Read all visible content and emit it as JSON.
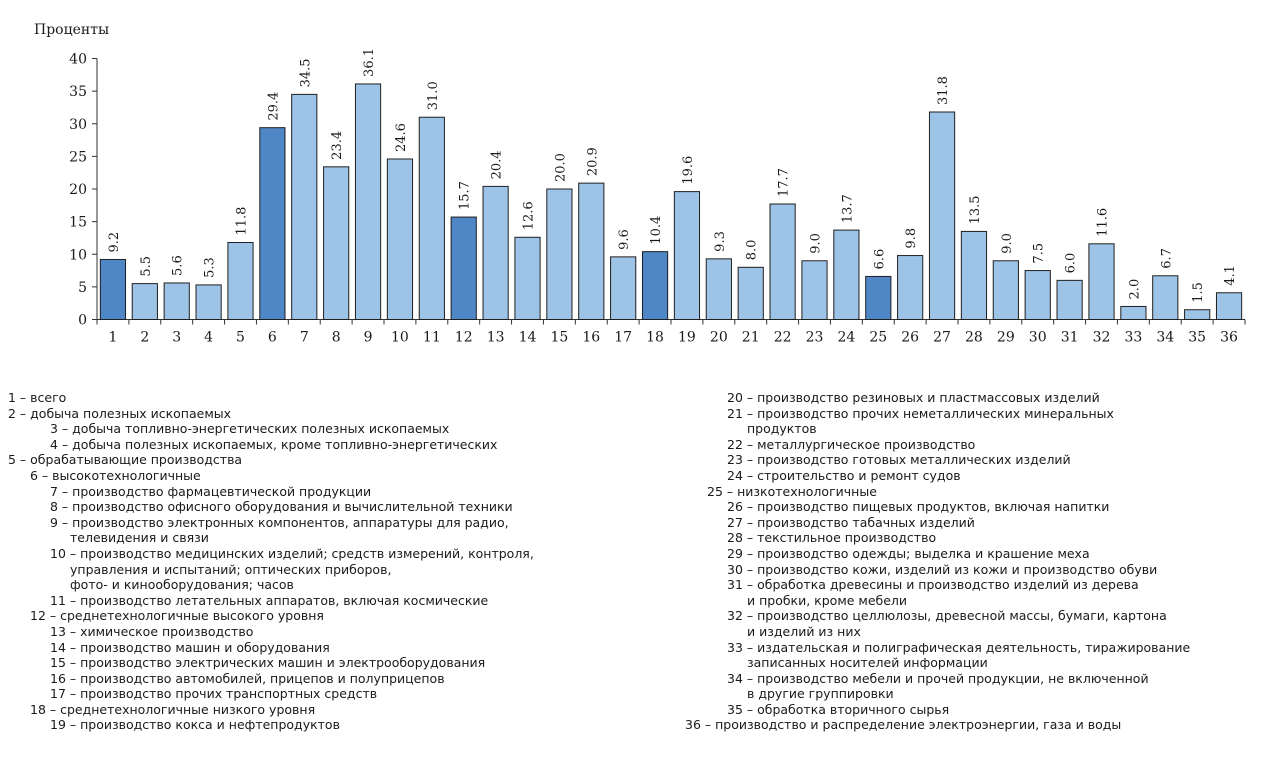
{
  "chart_data": {
    "type": "bar",
    "ylabel": "Проценты",
    "ylim": [
      0,
      40
    ],
    "yticks": [
      0,
      5,
      10,
      15,
      20,
      25,
      30,
      35,
      40
    ],
    "categories": [
      "1",
      "2",
      "3",
      "4",
      "5",
      "6",
      "7",
      "8",
      "9",
      "10",
      "11",
      "12",
      "13",
      "14",
      "15",
      "16",
      "17",
      "18",
      "19",
      "20",
      "21",
      "22",
      "23",
      "24",
      "25",
      "26",
      "27",
      "28",
      "29",
      "30",
      "31",
      "32",
      "33",
      "34",
      "35",
      "36"
    ],
    "values": [
      9.2,
      5.5,
      5.6,
      5.3,
      11.8,
      29.4,
      34.5,
      23.4,
      36.1,
      24.6,
      31.0,
      15.7,
      20.4,
      12.6,
      20.0,
      20.9,
      9.6,
      10.4,
      19.6,
      9.3,
      8.0,
      17.7,
      9.0,
      13.7,
      6.6,
      9.8,
      31.8,
      13.5,
      9.0,
      7.5,
      6.0,
      11.6,
      2.0,
      6.7,
      1.5,
      4.1
    ],
    "value_labels": [
      "9.2",
      "5.5",
      "5.6",
      "5.3",
      "11.8",
      "29.4",
      "34.5",
      "23.4",
      "36.1",
      "24.6",
      "31.0",
      "15.7",
      "20.4",
      "12.6",
      "20.0",
      "20.9",
      "9.6",
      "10.4",
      "19.6",
      "9.3",
      "8.0",
      "17.7",
      "9.0",
      "13.7",
      "6.6",
      "9.8",
      "31.8",
      "13.5",
      "9.0",
      "7.5",
      "6.0",
      "11.6",
      "2.0",
      "6.7",
      "1.5",
      "4.1"
    ],
    "highlighted": [
      1,
      6,
      12,
      18,
      25
    ],
    "colors": {
      "bar": "#9dc3e6",
      "highlight": "#4f86c6",
      "edge": "#1f1f1f"
    },
    "grid": false,
    "legend_left": [
      {
        "indent": 0,
        "text": "1 – всего"
      },
      {
        "indent": 0,
        "text": "2 – добыча полезных ископаемых"
      },
      {
        "indent": 2,
        "text": "3 – добыча топливно-энергетических полезных ископаемых"
      },
      {
        "indent": 2,
        "text": "4 – добыча полезных ископаемых, кроме топливно-энергетических"
      },
      {
        "indent": 0,
        "text": "5 – обрабатывающие производства"
      },
      {
        "indent": 1,
        "text": "6 – высокотехнологичные"
      },
      {
        "indent": 2,
        "text": "7 – производство фармацевтической продукции"
      },
      {
        "indent": 2,
        "text": "8 – производство офисного оборудования и вычислительной техники"
      },
      {
        "indent": 2,
        "text": "9 – производство электронных компонентов, аппаратуры для радио,"
      },
      {
        "indent": 3,
        "text": "телевидения и связи"
      },
      {
        "indent": 2,
        "text": "10 – производство медицинских изделий; средств измерений, контроля,"
      },
      {
        "indent": 3,
        "text": "управления и испытаний; оптических приборов,"
      },
      {
        "indent": 3,
        "text": "фото- и кинооборудования; часов"
      },
      {
        "indent": 2,
        "text": "11 – производство летательных аппаратов, включая космические"
      },
      {
        "indent": 1,
        "text": "12 – среднетехнологичные высокого уровня"
      },
      {
        "indent": 2,
        "text": "13 – химическое производство"
      },
      {
        "indent": 2,
        "text": "14 – производство машин и оборудования"
      },
      {
        "indent": 2,
        "text": "15 – производство электрических машин и электрооборудования"
      },
      {
        "indent": 2,
        "text": "16 – производство автомобилей, прицепов и полуприцепов"
      },
      {
        "indent": 2,
        "text": "17 – производство прочих транспортных средств"
      },
      {
        "indent": 1,
        "text": "18 – среднетехнологичные низкого уровня"
      },
      {
        "indent": 2,
        "text": "19 – производство кокса и нефтепродуктов"
      }
    ],
    "legend_right": [
      {
        "indent": 2,
        "text": "20 – производство резиновых и пластмассовых изделий"
      },
      {
        "indent": 2,
        "text": "21 – производство прочих неметаллических минеральных"
      },
      {
        "indent": 3,
        "text": "продуктов"
      },
      {
        "indent": 2,
        "text": "22 – металлургическое производство"
      },
      {
        "indent": 2,
        "text": "23 – производство готовых металлических изделий"
      },
      {
        "indent": 2,
        "text": "24 – строительство и ремонт судов"
      },
      {
        "indent": 1,
        "text": "25 – низкотехнологичные"
      },
      {
        "indent": 2,
        "text": "26 – производство пищевых продуктов, включая напитки"
      },
      {
        "indent": 2,
        "text": "27 – производство табачных изделий"
      },
      {
        "indent": 2,
        "text": "28 – текстильное производство"
      },
      {
        "indent": 2,
        "text": "29 – производство одежды; выделка и крашение меха"
      },
      {
        "indent": 2,
        "text": "30 – производство кожи, изделий из кожи и производство обуви"
      },
      {
        "indent": 2,
        "text": "31 – обработка древесины и производство изделий из дерева"
      },
      {
        "indent": 3,
        "text": "и пробки, кроме мебели"
      },
      {
        "indent": 2,
        "text": "32 – производство целлюлозы, древесной массы, бумаги, картона"
      },
      {
        "indent": 3,
        "text": "и изделий из них"
      },
      {
        "indent": 2,
        "text": "33 – издательская и полиграфическая деятельность, тиражирование"
      },
      {
        "indent": 3,
        "text": "записанных носителей информации"
      },
      {
        "indent": 2,
        "text": "34 – производство мебели и прочей продукции, не включенной"
      },
      {
        "indent": 3,
        "text": "в другие группировки"
      },
      {
        "indent": 2,
        "text": "35 – обработка вторичного сырья"
      },
      {
        "indent": 0,
        "text": "36 – производство и распределение электроэнергии, газа и воды"
      }
    ]
  }
}
